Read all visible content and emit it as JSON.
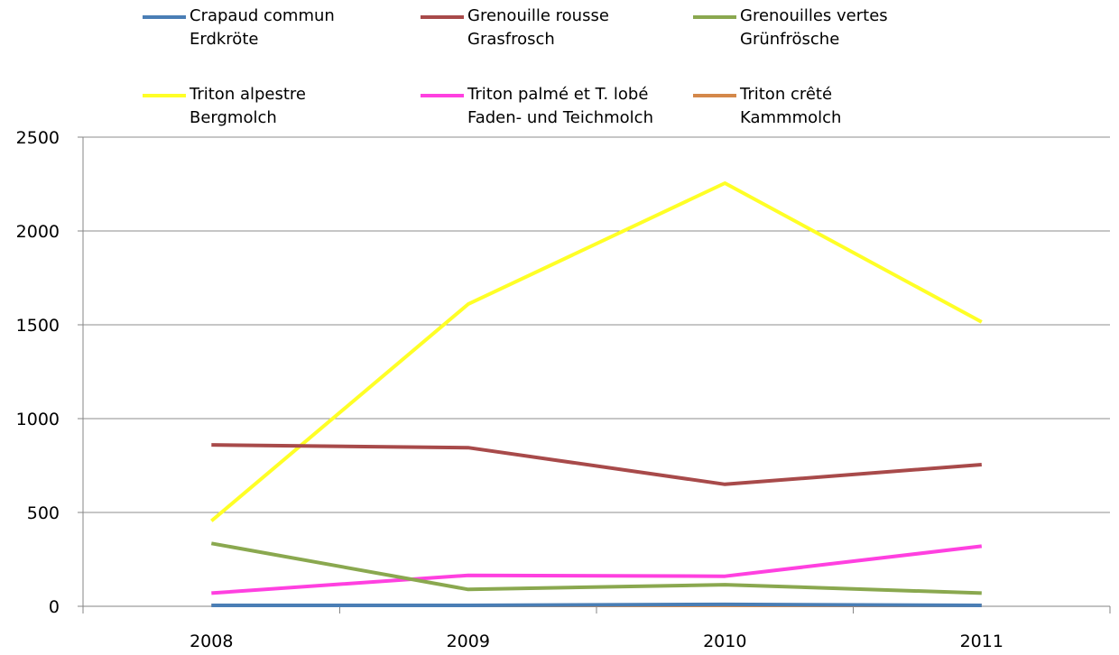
{
  "chart_data": {
    "type": "line",
    "categories": [
      "2008",
      "2009",
      "2010",
      "2011"
    ],
    "ylim": [
      0,
      2500
    ],
    "yticks": [
      0,
      500,
      1000,
      1500,
      2000,
      2500
    ],
    "grid": true,
    "legend_position": "top",
    "series": [
      {
        "name": [
          "Crapaud commun",
          "Erdkröte"
        ],
        "color": "#4a7eb5",
        "values": [
          5,
          5,
          10,
          5
        ]
      },
      {
        "name": [
          "Grenouille rousse",
          "Grasfrosch"
        ],
        "color": "#a84a4a",
        "values": [
          860,
          845,
          650,
          755
        ]
      },
      {
        "name": [
          "Grenouilles vertes",
          "Grünfrösche"
        ],
        "color": "#8aa84f",
        "values": [
          335,
          90,
          115,
          70
        ]
      },
      {
        "name": [
          "Triton alpestre",
          "Bergmolch"
        ],
        "color": "#ffff26",
        "values": [
          455,
          1610,
          2255,
          1515
        ]
      },
      {
        "name": [
          "Triton palmé et T. lobé",
          "Faden- und Teichmolch"
        ],
        "color": "#ff40e0",
        "values": [
          70,
          165,
          160,
          320
        ]
      },
      {
        "name": [
          "Triton crêté",
          "Kammmolch"
        ],
        "color": "#d4884a",
        "values": [
          5,
          5,
          5,
          5
        ]
      }
    ]
  }
}
